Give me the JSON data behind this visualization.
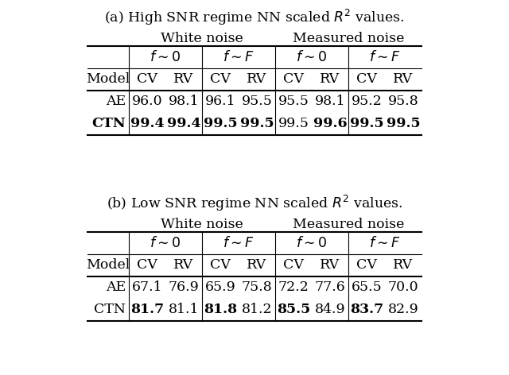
{
  "title_a": "(a) High SNR regime NN scaled $R^2$ values.",
  "title_b": "(b) Low SNR regime NN scaled $R^2$ values.",
  "rows_a": [
    [
      "AE",
      "96.0",
      "98.1",
      "96.1",
      "95.5",
      "95.5",
      "98.1",
      "95.2",
      "95.8"
    ],
    [
      "CTN",
      "99.4",
      "99.4",
      "99.5",
      "99.5",
      "99.5",
      "99.6",
      "99.5",
      "99.5"
    ]
  ],
  "rows_b": [
    [
      "AE",
      "67.1",
      "76.9",
      "65.9",
      "75.8",
      "72.2",
      "77.6",
      "65.5",
      "70.0"
    ],
    [
      "CTN",
      "81.7",
      "81.1",
      "81.8",
      "81.2",
      "85.5",
      "84.9",
      "83.7",
      "82.9"
    ]
  ],
  "bold_a": [
    [
      false,
      false,
      false,
      false,
      false,
      false,
      false,
      false,
      false
    ],
    [
      true,
      true,
      true,
      true,
      true,
      false,
      true,
      true,
      true
    ]
  ],
  "bold_b": [
    [
      false,
      false,
      false,
      false,
      false,
      false,
      false,
      false,
      false
    ],
    [
      false,
      true,
      false,
      true,
      false,
      true,
      false,
      true,
      false
    ]
  ],
  "col_header": [
    "Model",
    "CV",
    "RV",
    "CV",
    "RV",
    "CV",
    "RV",
    "CV",
    "RV"
  ],
  "fsim_headers": [
    "$f \\sim 0$",
    "$f \\sim F$",
    "$f \\sim 0$",
    "$f \\sim F$"
  ],
  "noise_headers": [
    "White noise",
    "Measured noise"
  ],
  "background": "#ffffff"
}
